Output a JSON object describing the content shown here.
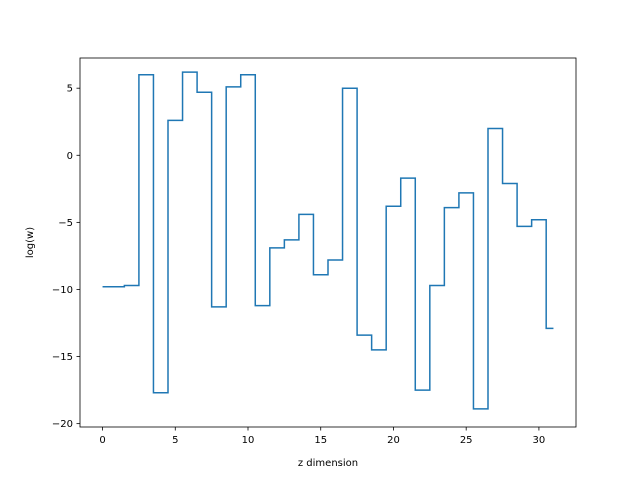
{
  "chart_data": {
    "type": "line",
    "drawstyle": "steps-mid",
    "title": "",
    "xlabel": "z dimension",
    "ylabel": "log(w)",
    "xlim": [
      -1.55,
      32.55
    ],
    "ylim": [
      -20.25,
      7.25
    ],
    "grid": false,
    "line_color": "#1f77b4",
    "x_ticks": [
      0,
      5,
      10,
      15,
      20,
      25,
      30
    ],
    "y_ticks": [
      -20,
      -15,
      -10,
      -5,
      0,
      5
    ],
    "x": [
      0,
      1,
      2,
      3,
      4,
      5,
      6,
      7,
      8,
      9,
      10,
      11,
      12,
      13,
      14,
      15,
      16,
      17,
      18,
      19,
      20,
      21,
      22,
      23,
      24,
      25,
      26,
      27,
      28,
      29,
      30,
      31
    ],
    "y": [
      -9.8,
      -9.8,
      -9.7,
      6.0,
      -17.7,
      2.6,
      6.2,
      4.7,
      -11.3,
      5.1,
      6.0,
      -11.2,
      -6.9,
      -6.3,
      -4.4,
      -8.9,
      -7.8,
      5.0,
      -13.4,
      -14.5,
      -3.8,
      -1.7,
      -17.5,
      -9.7,
      -3.9,
      -2.8,
      -18.9,
      2.0,
      -2.1,
      -5.3,
      -4.8,
      -12.9
    ]
  }
}
